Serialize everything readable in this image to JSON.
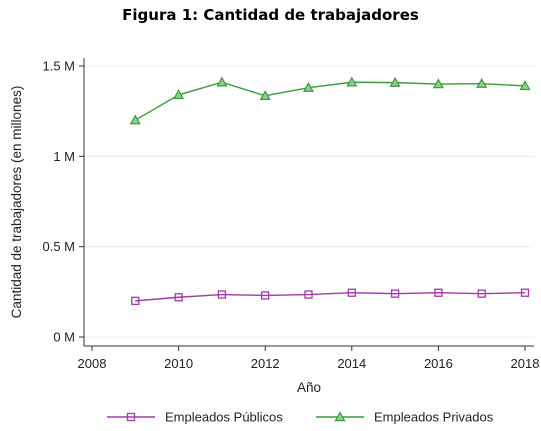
{
  "title": "Figura 1: Cantidad de trabajadores",
  "chart_data": {
    "type": "line",
    "title": "Figura 1: Cantidad de trabajadores",
    "xlabel": "Año",
    "ylabel": "Cantidad de trabajadores (en millones)",
    "xlim": [
      2008,
      2018
    ],
    "ylim": [
      0,
      1.5
    ],
    "xticks": [
      2008,
      2010,
      2012,
      2014,
      2016,
      2018
    ],
    "yticks": [
      0,
      0.5,
      1,
      1.5
    ],
    "ytick_labels": [
      "0 M",
      "0.5 M",
      "1 M",
      "1.5 M"
    ],
    "grid": true,
    "legend_position": "bottom",
    "x": [
      2009,
      2010,
      2011,
      2012,
      2013,
      2014,
      2015,
      2016,
      2017,
      2018
    ],
    "series": [
      {
        "name": "Empleados Públicos",
        "marker": "square",
        "color": "#a23aa8",
        "values": [
          0.2,
          0.22,
          0.235,
          0.23,
          0.235,
          0.245,
          0.24,
          0.245,
          0.24,
          0.245
        ]
      },
      {
        "name": "Empleados Privados",
        "marker": "triangle",
        "color": "#3b9a3b",
        "values": [
          1.2,
          1.34,
          1.41,
          1.335,
          1.38,
          1.41,
          1.408,
          1.4,
          1.402,
          1.39
        ]
      }
    ]
  }
}
